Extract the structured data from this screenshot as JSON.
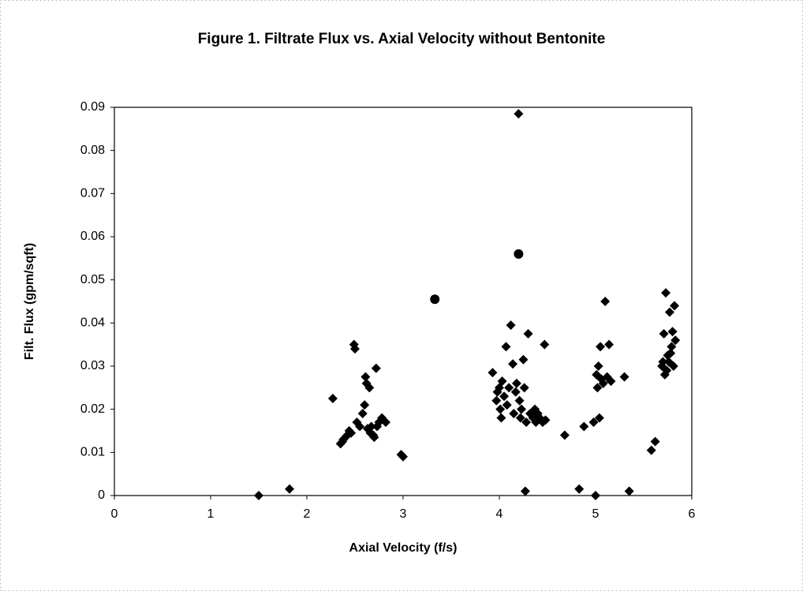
{
  "chart_data": {
    "type": "scatter",
    "title": "Figure 1. Filtrate Flux vs. Axial Velocity without Bentonite",
    "x_label": "Axial Velocity (f/s)",
    "y_label": "Filt. Flux (gpm/sqft)",
    "xlim": [
      0,
      6
    ],
    "xticks": [
      0,
      1,
      2,
      3,
      4,
      5,
      6
    ],
    "ylim": [
      0,
      0.09
    ],
    "yticks": [
      0,
      0.01,
      0.02,
      0.03,
      0.04,
      0.05,
      0.06,
      0.07,
      0.08,
      0.09
    ],
    "grid": false,
    "series": [
      {
        "color": "#000000",
        "marker": "diamond",
        "x": [
          1.5,
          1.82,
          2.27,
          2.35,
          2.37,
          2.38,
          2.4,
          2.42,
          2.44,
          2.46,
          2.49,
          2.5,
          2.52,
          2.55,
          2.58,
          2.6,
          2.61,
          2.62,
          2.63,
          2.65,
          2.66,
          2.67,
          2.69,
          2.7,
          2.72,
          2.73,
          2.75,
          2.78,
          2.82,
          2.98,
          3.0,
          3.93,
          3.97,
          3.98,
          4.0,
          4.01,
          4.02,
          4.03,
          4.05,
          4.07,
          4.08,
          4.1,
          4.12,
          4.14,
          4.15,
          4.17,
          4.18,
          4.2,
          4.21,
          4.22,
          4.23,
          4.25,
          4.26,
          4.27,
          4.28,
          4.3,
          4.32,
          4.35,
          4.37,
          4.38,
          4.4,
          4.42,
          4.45,
          4.47,
          4.48,
          4.68,
          4.83,
          4.88,
          4.98,
          5.0,
          5.01,
          5.02,
          5.03,
          5.04,
          5.05,
          5.06,
          5.08,
          5.1,
          5.12,
          5.14,
          5.16,
          5.3,
          5.35,
          5.58,
          5.62,
          5.69,
          5.7,
          5.71,
          5.72,
          5.73,
          5.74,
          5.75,
          5.76,
          5.77,
          5.78,
          5.79,
          5.8,
          5.81,
          5.82,
          5.83
        ],
        "values": [
          0.0,
          0.0015,
          0.0225,
          0.012,
          0.0125,
          0.013,
          0.0135,
          0.014,
          0.015,
          0.0145,
          0.035,
          0.034,
          0.017,
          0.016,
          0.019,
          0.021,
          0.0275,
          0.026,
          0.0155,
          0.025,
          0.0145,
          0.016,
          0.014,
          0.0135,
          0.0295,
          0.016,
          0.017,
          0.018,
          0.017,
          0.0095,
          0.009,
          0.0285,
          0.022,
          0.024,
          0.025,
          0.02,
          0.018,
          0.0265,
          0.023,
          0.0345,
          0.021,
          0.025,
          0.0395,
          0.0305,
          0.019,
          0.024,
          0.026,
          0.0885,
          0.022,
          0.018,
          0.02,
          0.0315,
          0.025,
          0.001,
          0.017,
          0.0375,
          0.019,
          0.018,
          0.02,
          0.017,
          0.019,
          0.018,
          0.017,
          0.035,
          0.0175,
          0.014,
          0.0015,
          0.016,
          0.017,
          0.0,
          0.028,
          0.025,
          0.03,
          0.018,
          0.0345,
          0.027,
          0.026,
          0.045,
          0.0275,
          0.035,
          0.0265,
          0.0275,
          0.001,
          0.0105,
          0.0125,
          0.03,
          0.031,
          0.0375,
          0.028,
          0.047,
          0.029,
          0.0325,
          0.031,
          0.0425,
          0.033,
          0.0345,
          0.038,
          0.03,
          0.044,
          0.036
        ]
      },
      {
        "color": "#000000",
        "marker": "circle",
        "x": [
          3.33,
          4.2
        ],
        "values": [
          0.0455,
          0.056
        ]
      }
    ]
  }
}
